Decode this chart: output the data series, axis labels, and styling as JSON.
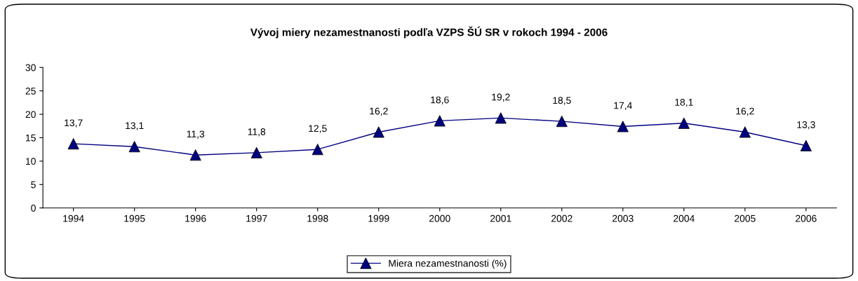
{
  "chart_data": {
    "type": "line",
    "title": "Vývoj miery nezamestnanosti podľa VZPS ŠÚ SR v rokoch 1994 - 2006",
    "categories": [
      "1994",
      "1995",
      "1996",
      "1997",
      "1998",
      "1999",
      "2000",
      "2001",
      "2002",
      "2003",
      "2004",
      "2005",
      "2006"
    ],
    "series": [
      {
        "name": "Miera nezamestnanosti (%)",
        "color": "#000080",
        "values": [
          13.7,
          13.1,
          11.3,
          11.8,
          12.5,
          16.2,
          18.6,
          19.2,
          18.5,
          17.4,
          18.1,
          16.2,
          13.3
        ],
        "value_labels": [
          "13,7",
          "13,1",
          "11,3",
          "11,8",
          "12,5",
          "16,2",
          "18,6",
          "19,2",
          "18,5",
          "17,4",
          "18,1",
          "16,2",
          "13,3"
        ]
      }
    ],
    "ylim": [
      0,
      30
    ],
    "yticks": [
      0,
      5,
      10,
      15,
      20,
      25,
      30
    ],
    "grid": false,
    "legend": "bottom",
    "marker": "triangle",
    "line_style": "solid"
  }
}
